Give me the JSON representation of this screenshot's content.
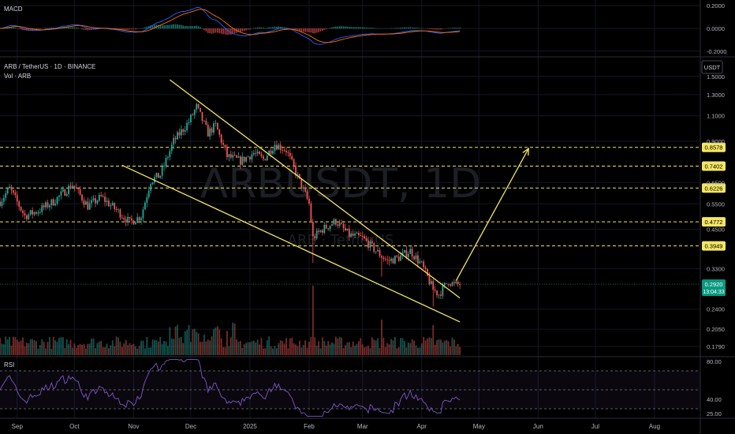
{
  "chart_data": [
    {
      "type": "line",
      "title": "MACD",
      "yticks": [
        "0.2000",
        "0.0000",
        "-0.2000"
      ],
      "ylim": [
        -0.25,
        0.25
      ],
      "grid": true
    },
    {
      "type": "candlestick",
      "title": "ARB / TetherUS · 1D · BINANCE",
      "subtitle": "Vol · ARB",
      "watermark": "ARBUSDT, 1D",
      "watermark_sub": "ARB · TetherUS",
      "currency": "USDT",
      "yscale": "log",
      "ylim": [
        0.165,
        1.75
      ],
      "yticks": [
        "1.5000",
        "1.3000",
        "1.1000",
        "0.9000",
        "0.6500",
        "0.5500",
        "0.4500",
        "0.3300",
        "0.2400",
        "0.2050",
        "0.1790"
      ],
      "xticks": [
        "Sep",
        "Oct",
        "Nov",
        "Dec",
        "2025",
        "Feb",
        "Mar",
        "Apr",
        "May",
        "Jun",
        "Jul",
        "Aug"
      ],
      "levels": [
        {
          "value": 0.8578,
          "label": "0.8578",
          "color": "#f5e663"
        },
        {
          "value": 0.7402,
          "label": "0.7402",
          "color": "#f5e663"
        },
        {
          "value": 0.6226,
          "label": "0.6226",
          "color": "#f5e663"
        },
        {
          "value": 0.4772,
          "label": "0.4772",
          "color": "#f5e663"
        },
        {
          "value": 0.3949,
          "label": "0.3949",
          "color": "#f5e663"
        }
      ],
      "last_price": {
        "value": 0.292,
        "label": "0.2920",
        "countdown": "13:04:33",
        "color": "#089981"
      },
      "wedge": {
        "upper": [
          [
            "2024-11-20",
            1.46
          ],
          [
            "2025-04-21",
            0.262
          ]
        ],
        "lower": [
          [
            "2024-10-26",
            0.745
          ],
          [
            "2025-04-21",
            0.217
          ]
        ],
        "arrow": [
          [
            "2025-04-19",
            0.3
          ],
          [
            "2025-05-27",
            0.85
          ]
        ],
        "color": "#f5e663"
      },
      "colors": {
        "up": "#26a69a",
        "down": "#ef5350"
      },
      "grid": true
    },
    {
      "type": "line",
      "title": "RSI",
      "yticks": [
        "80.00",
        "40.00",
        "25.00"
      ],
      "ylim": [
        20,
        85
      ],
      "bands": [
        70,
        30
      ],
      "line_color": "#7e57c2",
      "grid": true
    }
  ]
}
